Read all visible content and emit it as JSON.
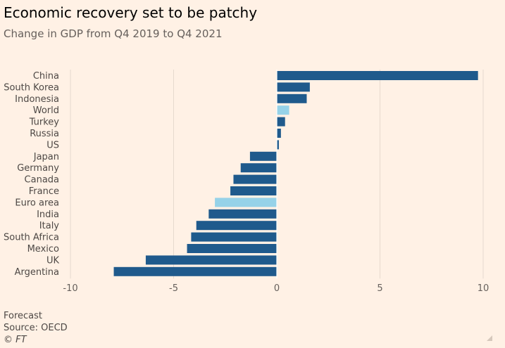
{
  "title": "Economic recovery set to be patchy",
  "subtitle": "Change in GDP from Q4 2019 to Q4 2021",
  "footer": {
    "note": "Forecast",
    "source": "Source: OECD",
    "credit": "© FT"
  },
  "chart_data": {
    "type": "bar",
    "orientation": "horizontal",
    "title": "Economic recovery set to be patchy",
    "subtitle": "Change in GDP from Q4 2019 to Q4 2021",
    "categories": [
      "China",
      "South Korea",
      "Indonesia",
      "World",
      "Turkey",
      "Russia",
      "US",
      "Japan",
      "Germany",
      "Canada",
      "France",
      "Euro area",
      "India",
      "Italy",
      "South Africa",
      "Mexico",
      "UK",
      "Argentina"
    ],
    "values": [
      9.75,
      1.6,
      1.45,
      0.6,
      0.4,
      0.2,
      0.1,
      -1.3,
      -1.75,
      -2.1,
      -2.25,
      -3.0,
      -3.3,
      -3.9,
      -4.15,
      -4.35,
      -6.35,
      -7.9
    ],
    "highlight": [
      "World",
      "Euro area"
    ],
    "xlim": [
      -10,
      10
    ],
    "xticks": [
      -10,
      -5,
      0,
      5,
      10
    ],
    "grid": true,
    "colors": {
      "default": "#1f5a8c",
      "highlight": "#96d2e8",
      "grid": "#e6d9ce",
      "background": "#fff1e5"
    }
  }
}
